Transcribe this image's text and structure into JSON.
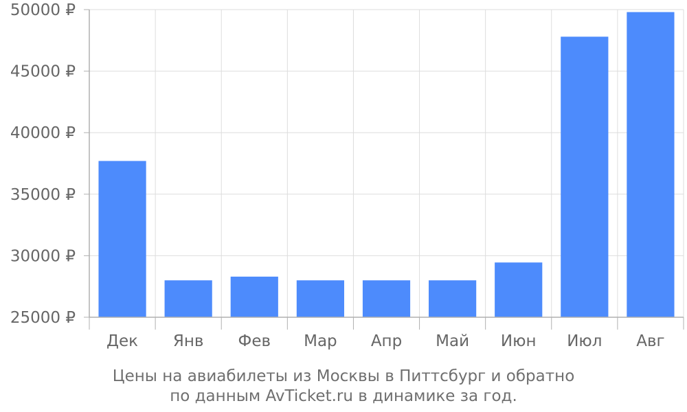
{
  "chart_data": {
    "type": "bar",
    "categories": [
      "Дек",
      "Янв",
      "Фев",
      "Мар",
      "Апр",
      "Май",
      "Июн",
      "Июл",
      "Авг"
    ],
    "values": [
      37700,
      28000,
      28300,
      28000,
      28000,
      28000,
      29450,
      47800,
      49800
    ],
    "ylim": [
      25000,
      50000
    ],
    "yticks": [
      25000,
      30000,
      35000,
      40000,
      45000,
      50000
    ],
    "ytick_suffix": " ₽",
    "grid": true,
    "bar_color": "#4d8bfc",
    "grid_color": "#dddddd",
    "axis_color": "#b0b0b0",
    "text_color": "#666666"
  },
  "caption": {
    "line1": "Цены на авиабилеты из Москвы в Питтсбург и обратно",
    "line2": "по данным AvTicket.ru в динамике за год."
  }
}
